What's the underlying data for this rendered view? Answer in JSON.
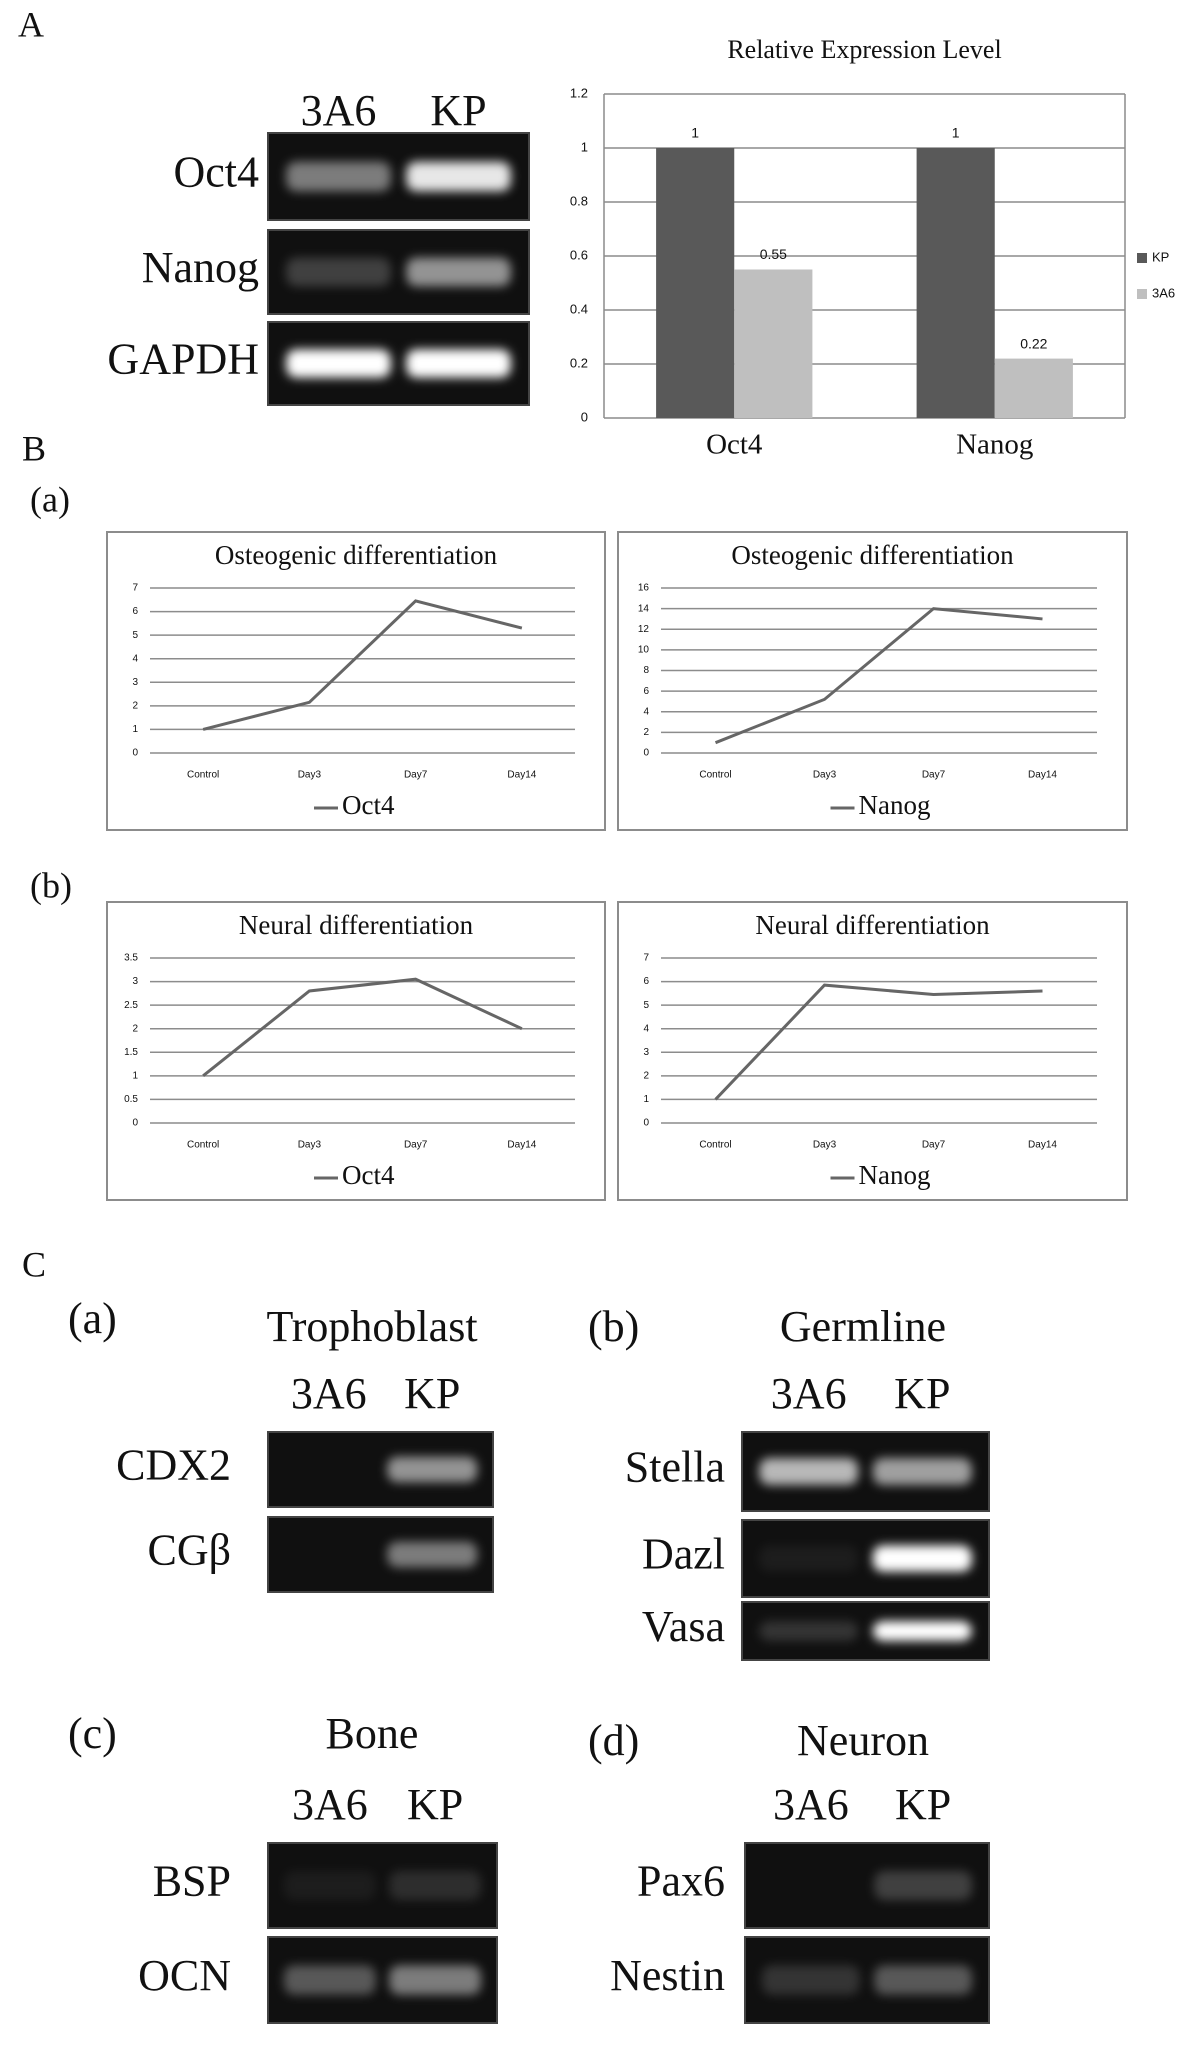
{
  "figure": {
    "panel_A": {
      "label": "A",
      "gel": {
        "lanes": [
          "3A6",
          "KP"
        ],
        "rows": [
          "Oct4",
          "Nanog",
          "GAPDH"
        ]
      }
    },
    "panel_B": {
      "label": "B",
      "sub_labels": [
        "(a)",
        "(b)"
      ]
    },
    "panel_C": {
      "label": "C",
      "gels": [
        {
          "label": "(a)",
          "title": "Trophoblast",
          "lanes": [
            "3A6",
            "KP"
          ],
          "rows": [
            "CDX2",
            "CGβ"
          ]
        },
        {
          "label": "(b)",
          "title": "Germline",
          "lanes": [
            "3A6",
            "KP"
          ],
          "rows": [
            "Stella",
            "Dazl",
            "Vasa"
          ]
        },
        {
          "label": "(c)",
          "title": "Bone",
          "lanes": [
            "3A6",
            "KP"
          ],
          "rows": [
            "BSP",
            "OCN"
          ]
        },
        {
          "label": "(d)",
          "title": "Neuron",
          "lanes": [
            "3A6",
            "KP"
          ],
          "rows": [
            "Pax6",
            "Nestin"
          ]
        }
      ]
    }
  },
  "chart_data": [
    {
      "type": "bar",
      "title": "Relative Expression Level",
      "categories": [
        "Oct4",
        "Nanog"
      ],
      "series": [
        {
          "name": "KP",
          "color": "#595959",
          "values": [
            1,
            1
          ]
        },
        {
          "name": "3A6",
          "color": "#bfbfbf",
          "values": [
            0.55,
            0.22
          ]
        }
      ],
      "ylim": [
        0,
        1.2
      ],
      "yticks": [
        0,
        0.2,
        0.4,
        0.6,
        0.8,
        1,
        1.2
      ],
      "grid": true,
      "legend": "right"
    },
    {
      "type": "line",
      "title": "Osteogenic differentiation",
      "categories": [
        "Control",
        "Day3",
        "Day7",
        "Day14"
      ],
      "series": [
        {
          "name": "Oct4",
          "color": "#666666",
          "values": [
            1,
            2.15,
            6.45,
            5.3
          ]
        }
      ],
      "ylim": [
        0,
        7
      ],
      "yticks": [
        0,
        1,
        2,
        3,
        4,
        5,
        6,
        7
      ],
      "grid": true,
      "legend": "bottom"
    },
    {
      "type": "line",
      "title": "Osteogenic differentiation",
      "categories": [
        "Control",
        "Day3",
        "Day7",
        "Day14"
      ],
      "series": [
        {
          "name": "Nanog",
          "color": "#666666",
          "values": [
            1,
            5.2,
            14,
            13
          ]
        }
      ],
      "ylim": [
        0,
        16
      ],
      "yticks": [
        0,
        2,
        4,
        6,
        8,
        10,
        12,
        14,
        16
      ],
      "grid": true,
      "legend": "bottom"
    },
    {
      "type": "line",
      "title": "Neural differentiation",
      "categories": [
        "Control",
        "Day3",
        "Day7",
        "Day14"
      ],
      "series": [
        {
          "name": "Oct4",
          "color": "#666666",
          "values": [
            1,
            2.8,
            3.05,
            2
          ]
        }
      ],
      "ylim": [
        0,
        3.5
      ],
      "yticks": [
        0,
        0.5,
        1,
        1.5,
        2,
        2.5,
        3,
        3.5
      ],
      "grid": true,
      "legend": "bottom"
    },
    {
      "type": "line",
      "title": "Neural differentiation",
      "categories": [
        "Control",
        "Day3",
        "Day7",
        "Day14"
      ],
      "series": [
        {
          "name": "Nanog",
          "color": "#666666",
          "values": [
            1,
            5.85,
            5.45,
            5.6
          ]
        }
      ],
      "ylim": [
        0,
        7
      ],
      "yticks": [
        0,
        1,
        2,
        3,
        4,
        5,
        6,
        7
      ],
      "grid": true,
      "legend": "bottom"
    }
  ]
}
